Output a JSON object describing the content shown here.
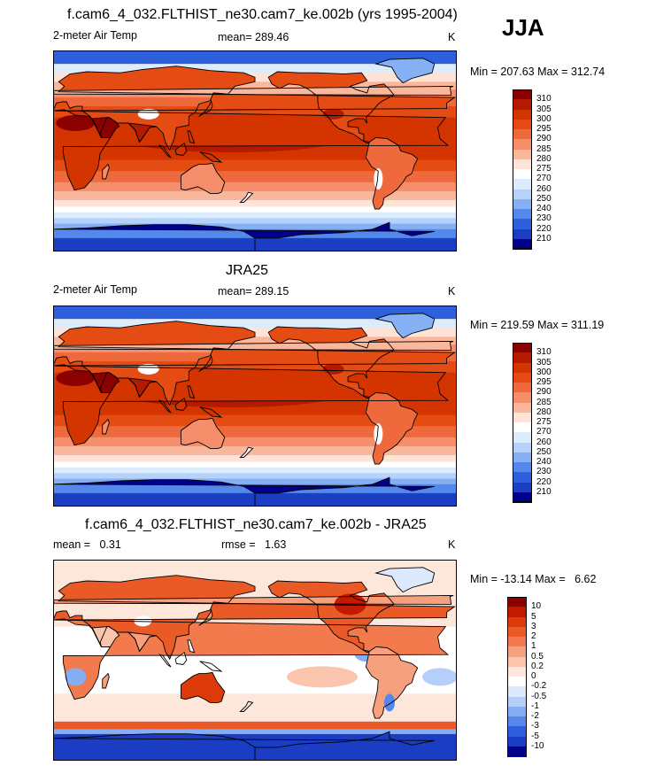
{
  "season": "JJA",
  "panels": [
    {
      "id": "model",
      "title": "f.cam6_4_032.FLTHIST_ne30.cam7_ke.002b (yrs 1995-2004)",
      "left_label": "2-meter Air Temp",
      "mid_label": "mean= 289.46",
      "right_label": "K",
      "minmax": "Min = 207.63 Max = 312.74",
      "colorbar": {
        "levels": [
          "310",
          "305",
          "300",
          "295",
          "290",
          "285",
          "280",
          "275",
          "270",
          "260",
          "250",
          "240",
          "230",
          "220",
          "210"
        ],
        "colors": [
          "#8b0000",
          "#b51a00",
          "#d43400",
          "#e44c14",
          "#ee6a3c",
          "#f58e6a",
          "#fab79c",
          "#fde4d6",
          "#ffffff",
          "#dcecfc",
          "#b6d2fa",
          "#86b0f4",
          "#5588ec",
          "#2e5fdd",
          "#1a3fc4",
          "#00008b"
        ]
      }
    },
    {
      "id": "obs",
      "title": "JRA25",
      "left_label": "2-meter Air Temp",
      "mid_label": "mean= 289.15",
      "right_label": "K",
      "minmax": "Min = 219.59 Max = 311.19",
      "colorbar": {
        "levels": [
          "310",
          "305",
          "300",
          "295",
          "290",
          "285",
          "280",
          "275",
          "270",
          "260",
          "250",
          "240",
          "230",
          "220",
          "210"
        ],
        "colors": [
          "#8b0000",
          "#b51a00",
          "#d43400",
          "#e44c14",
          "#ee6a3c",
          "#f58e6a",
          "#fab79c",
          "#fde4d6",
          "#ffffff",
          "#dcecfc",
          "#b6d2fa",
          "#86b0f4",
          "#5588ec",
          "#2e5fdd",
          "#1a3fc4",
          "#00008b"
        ]
      }
    },
    {
      "id": "diff",
      "title": "f.cam6_4_032.FLTHIST_ne30.cam7_ke.002b - JRA25",
      "left_label": "mean =   0.31",
      "mid_label": "rmse =   1.63",
      "right_label": "K",
      "minmax": "Min = -13.14 Max =   6.62",
      "colorbar": {
        "levels": [
          "10",
          "5",
          "3",
          "2",
          "1",
          "0.5",
          "0.2",
          "0",
          "-0.2",
          "-0.5",
          "-1",
          "-2",
          "-3",
          "-5",
          "-10"
        ],
        "colors": [
          "#8b0000",
          "#c21a00",
          "#dc3a08",
          "#ea5a26",
          "#f27a4c",
          "#f7a07e",
          "#fbc4ac",
          "#fde6da",
          "#ffffff",
          "#dce8fc",
          "#b6cffa",
          "#86aef4",
          "#5587ec",
          "#2e5edd",
          "#1a3dc4",
          "#00008b"
        ]
      }
    }
  ],
  "chart_data": [
    {
      "type": "heatmap",
      "title": "f.cam6_4_032.FLTHIST_ne30.cam7_ke.002b (yrs 1995-2004)",
      "variable": "2-meter Air Temp",
      "units": "K",
      "mean": 289.46,
      "min": 207.63,
      "max": 312.74,
      "contour_levels": [
        210,
        220,
        230,
        240,
        250,
        260,
        270,
        275,
        280,
        285,
        290,
        295,
        300,
        305,
        310
      ]
    },
    {
      "type": "heatmap",
      "title": "JRA25",
      "variable": "2-meter Air Temp",
      "units": "K",
      "mean": 289.15,
      "min": 219.59,
      "max": 311.19,
      "contour_levels": [
        210,
        220,
        230,
        240,
        250,
        260,
        270,
        275,
        280,
        285,
        290,
        295,
        300,
        305,
        310
      ]
    },
    {
      "type": "heatmap",
      "title": "f.cam6_4_032.FLTHIST_ne30.cam7_ke.002b - JRA25",
      "units": "K",
      "mean": 0.31,
      "rmse": 1.63,
      "min": -13.14,
      "max": 6.62,
      "contour_levels": [
        -10,
        -5,
        -3,
        -2,
        -1,
        -0.5,
        -0.2,
        0,
        0.2,
        0.5,
        1,
        2,
        3,
        5,
        10
      ]
    }
  ]
}
